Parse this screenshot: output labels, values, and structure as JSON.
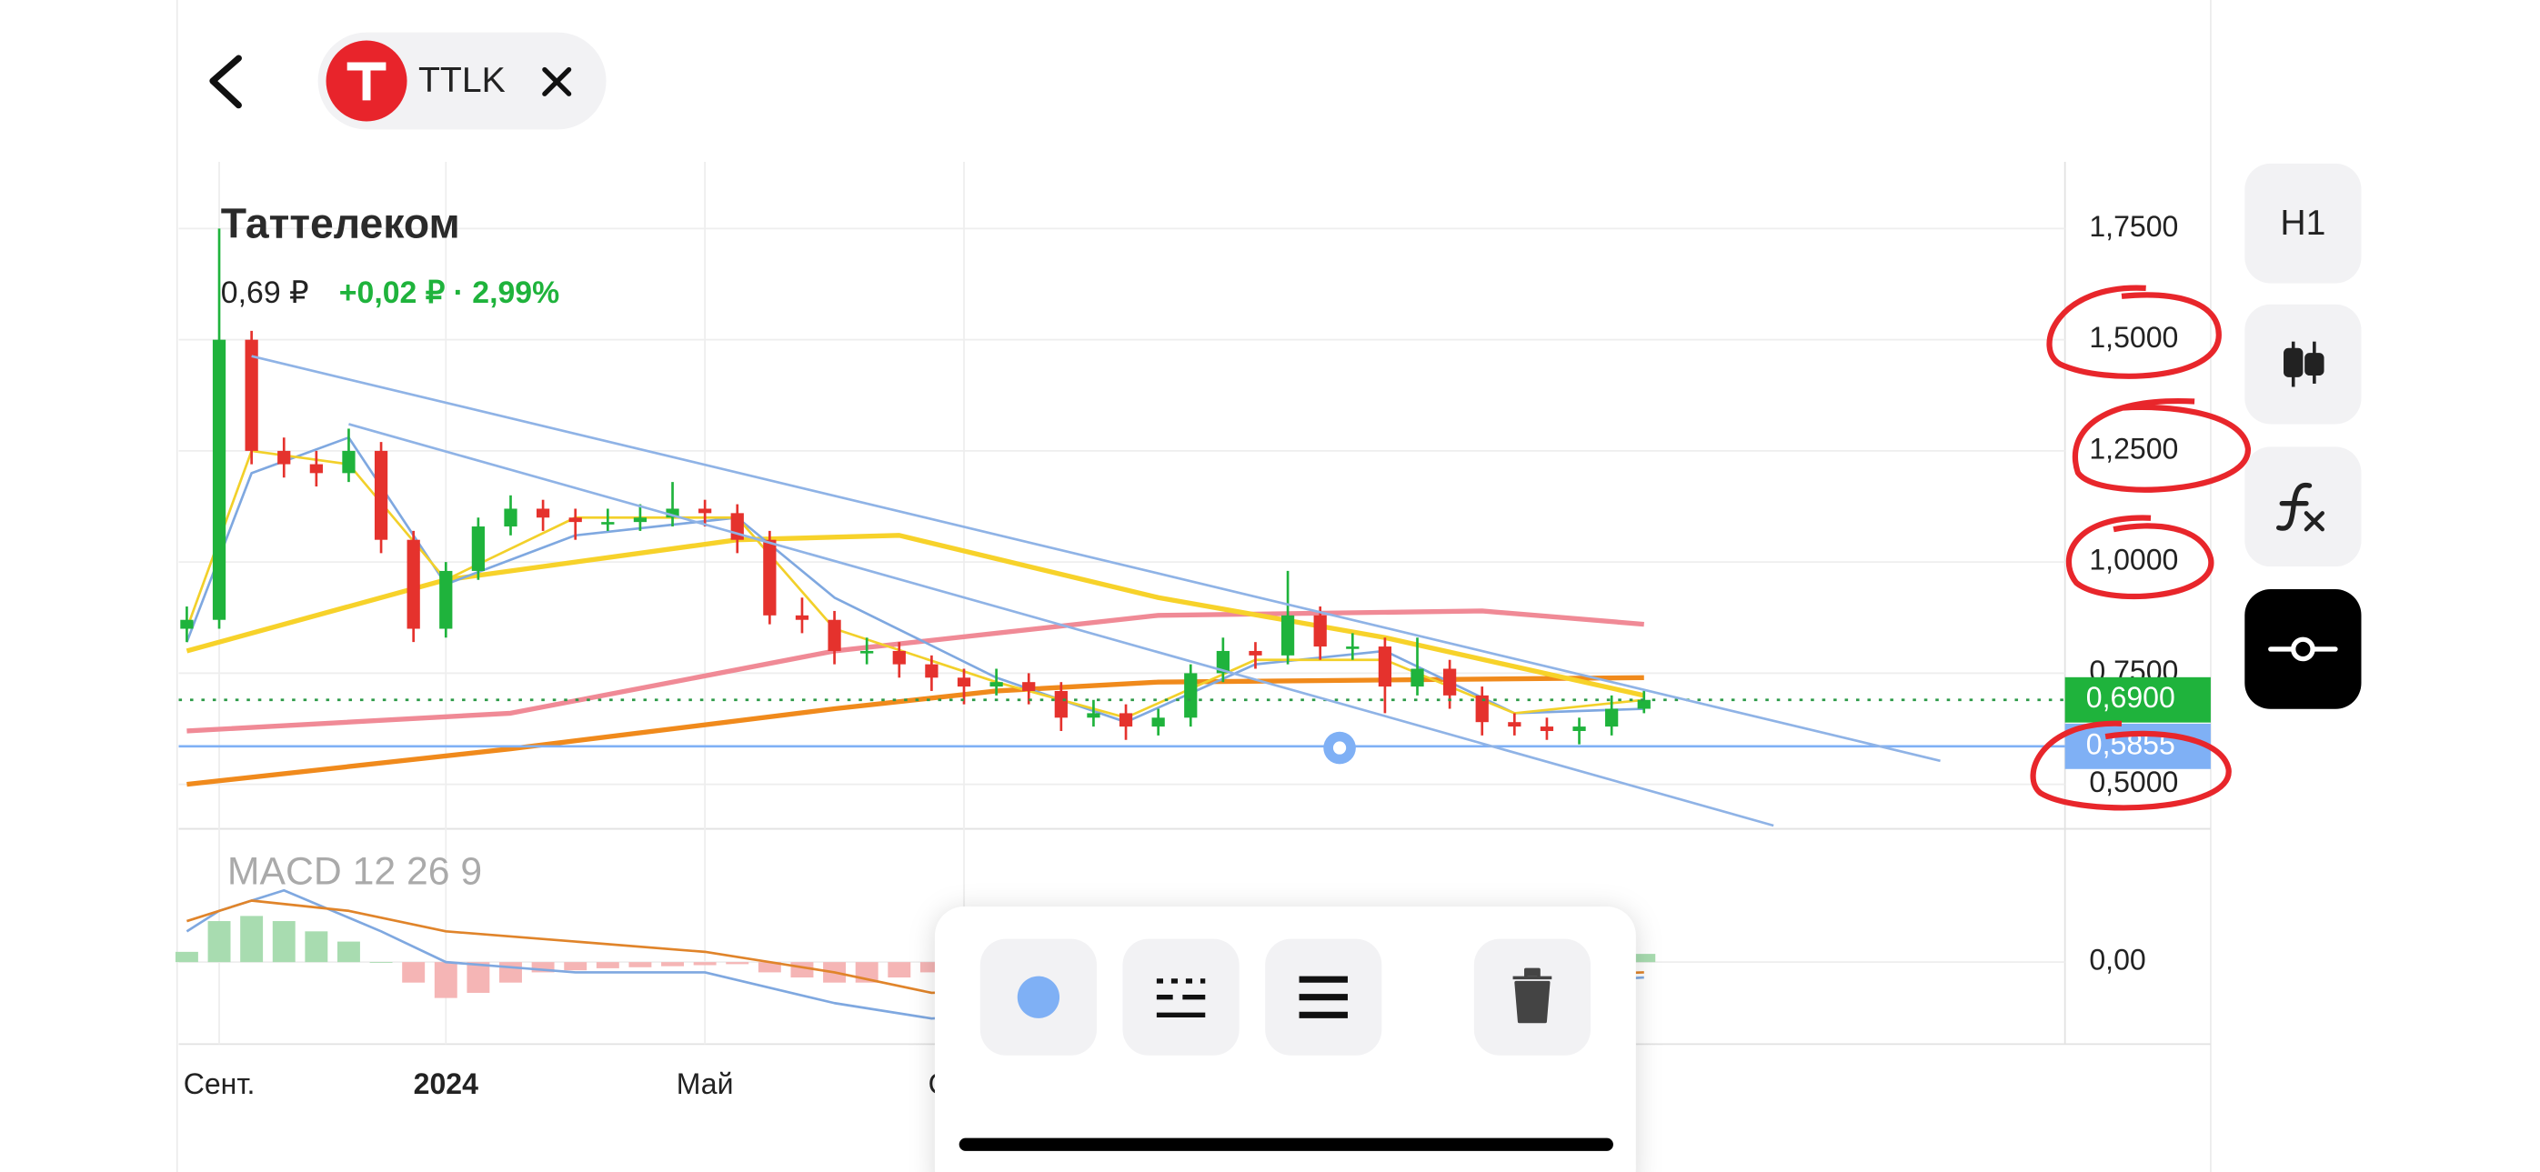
{
  "header": {
    "ticker": "TTLK"
  },
  "side_toolbar": {
    "timeframe": "H1"
  },
  "chart_data": {
    "type": "candlestick",
    "title": "Таттелеком",
    "price": "0,69 ₽",
    "change": "+0,02 ₽ · 2,99%",
    "categories": [
      null,
      "Сент.",
      null,
      null,
      null,
      null,
      null,
      null,
      "2024",
      null,
      null,
      null,
      null,
      null,
      null,
      null,
      "Май",
      null,
      null,
      null,
      null,
      null,
      null,
      null,
      "Сент.",
      null,
      null,
      null,
      null,
      null,
      null,
      null,
      null,
      null,
      null,
      null,
      null,
      null,
      null,
      null,
      null,
      null,
      null,
      null,
      null,
      null
    ],
    "open": [
      0.85,
      0.87,
      1.5,
      1.25,
      1.22,
      1.2,
      1.25,
      1.05,
      0.85,
      0.98,
      1.08,
      1.12,
      1.1,
      1.09,
      1.09,
      1.1,
      1.12,
      1.11,
      1.05,
      0.88,
      0.87,
      0.8,
      0.8,
      0.77,
      0.74,
      0.72,
      0.73,
      0.71,
      0.65,
      0.66,
      0.63,
      0.65,
      0.75,
      0.8,
      0.79,
      0.88,
      0.81,
      0.81,
      0.72,
      0.76,
      0.7,
      0.64,
      0.63,
      0.62,
      0.63,
      0.67
    ],
    "high": [
      0.9,
      1.75,
      1.52,
      1.28,
      1.25,
      1.3,
      1.27,
      1.07,
      1.0,
      1.1,
      1.15,
      1.14,
      1.12,
      1.12,
      1.13,
      1.18,
      1.14,
      1.13,
      1.07,
      0.92,
      0.89,
      0.83,
      0.82,
      0.79,
      0.76,
      0.76,
      0.75,
      0.73,
      0.69,
      0.68,
      0.67,
      0.77,
      0.83,
      0.82,
      0.98,
      0.9,
      0.84,
      0.83,
      0.83,
      0.78,
      0.72,
      0.66,
      0.65,
      0.65,
      0.7,
      0.71
    ],
    "low": [
      0.82,
      0.85,
      1.22,
      1.19,
      1.17,
      1.18,
      1.02,
      0.82,
      0.83,
      0.96,
      1.06,
      1.07,
      1.05,
      1.07,
      1.07,
      1.08,
      1.08,
      1.02,
      0.86,
      0.84,
      0.77,
      0.77,
      0.74,
      0.71,
      0.68,
      0.7,
      0.68,
      0.62,
      0.63,
      0.6,
      0.61,
      0.63,
      0.73,
      0.76,
      0.77,
      0.78,
      0.78,
      0.66,
      0.7,
      0.67,
      0.61,
      0.61,
      0.6,
      0.59,
      0.61,
      0.66
    ],
    "close": [
      0.87,
      1.5,
      1.25,
      1.22,
      1.2,
      1.25,
      1.05,
      0.85,
      0.98,
      1.08,
      1.12,
      1.1,
      1.09,
      1.09,
      1.1,
      1.12,
      1.11,
      1.05,
      0.88,
      0.87,
      0.8,
      0.8,
      0.77,
      0.74,
      0.72,
      0.73,
      0.71,
      0.65,
      0.66,
      0.63,
      0.65,
      0.75,
      0.8,
      0.79,
      0.88,
      0.81,
      0.81,
      0.72,
      0.76,
      0.7,
      0.64,
      0.63,
      0.62,
      0.63,
      0.67,
      0.69
    ],
    "up_color": "#1fb33c",
    "down_color": "#e5322d",
    "ylim": [
      0.4,
      1.9
    ],
    "yticks": [
      {
        "value": 0.5,
        "label": "0,5000"
      },
      {
        "value": 0.75,
        "label": "0,7500"
      },
      {
        "value": 1.0,
        "label": "1,0000"
      },
      {
        "value": 1.25,
        "label": "1,2500"
      },
      {
        "value": 1.5,
        "label": "1,5000"
      },
      {
        "value": 1.75,
        "label": "1,7500"
      }
    ],
    "grid": true,
    "overlays": [
      {
        "color": "#f08a1c",
        "width": 3,
        "x": [
          0,
          10,
          20,
          25,
          30,
          45
        ],
        "values": [
          0.5,
          0.58,
          0.67,
          0.71,
          0.73,
          0.74
        ]
      },
      {
        "color": "#f08a96",
        "width": 3,
        "x": [
          0,
          10,
          20,
          30,
          40,
          45
        ],
        "values": [
          0.62,
          0.66,
          0.8,
          0.88,
          0.89,
          0.86
        ]
      },
      {
        "color": "#f7d22a",
        "width": 3,
        "x": [
          0,
          8,
          17,
          22,
          30,
          37,
          45
        ],
        "values": [
          0.8,
          0.96,
          1.05,
          1.06,
          0.92,
          0.83,
          0.7
        ]
      },
      {
        "color": "#7fa8e0",
        "width": 1.5,
        "x": [
          0,
          2,
          5,
          8,
          12,
          17,
          20,
          25,
          29,
          33,
          37,
          41,
          45
        ],
        "values": [
          0.82,
          1.2,
          1.28,
          0.95,
          1.06,
          1.1,
          0.92,
          0.74,
          0.64,
          0.77,
          0.8,
          0.66,
          0.67
        ]
      },
      {
        "color": "#f2d02a",
        "width": 1.5,
        "x": [
          0,
          2,
          5,
          8,
          12,
          17,
          20,
          25,
          29,
          33,
          37,
          41,
          45
        ],
        "values": [
          0.85,
          1.25,
          1.22,
          0.96,
          1.1,
          1.1,
          0.85,
          0.73,
          0.65,
          0.78,
          0.78,
          0.66,
          0.69
        ]
      }
    ],
    "levels": [
      {
        "value": 0.5855,
        "label": "0,5855",
        "color": "#7fb0f5",
        "style": "solid"
      },
      {
        "value": 0.69,
        "label": "0,6900",
        "color": "#1fb33c",
        "style": "dotted"
      }
    ],
    "macd": {
      "title": "MACD 12 26 9",
      "ylim": [
        -0.08,
        0.13
      ],
      "yticks": [
        {
          "value": 0,
          "label": "0,00"
        }
      ],
      "histogram": [
        0.01,
        0.04,
        0.045,
        0.04,
        0.03,
        0.02,
        0.0,
        -0.02,
        -0.035,
        -0.03,
        -0.02,
        -0.01,
        -0.008,
        -0.006,
        -0.005,
        -0.004,
        -0.003,
        -0.002,
        -0.01,
        -0.015,
        -0.02,
        -0.02,
        -0.015,
        -0.01,
        -0.01,
        -0.008,
        -0.006,
        -0.006,
        -0.004,
        -0.003,
        -0.002,
        0.005,
        0.008,
        0.006,
        0.01,
        0.004,
        0.002,
        -0.004,
        -0.003,
        -0.005,
        -0.006,
        -0.004,
        -0.002,
        0.002,
        0.005,
        0.008
      ],
      "up_color": "#a8dcb0",
      "down_color": "#f5b5b5",
      "lines": [
        {
          "color": "#7fa8e0",
          "x": [
            0,
            1,
            3,
            6,
            8,
            12,
            16,
            20,
            23,
            45
          ],
          "values": [
            0.03,
            0.05,
            0.07,
            0.03,
            0.0,
            -0.01,
            -0.01,
            -0.04,
            -0.055,
            -0.015
          ]
        },
        {
          "color": "#e0842a",
          "x": [
            0,
            2,
            5,
            8,
            12,
            16,
            20,
            23,
            45
          ],
          "values": [
            0.04,
            0.06,
            0.05,
            0.03,
            0.02,
            0.01,
            -0.01,
            -0.03,
            -0.01
          ]
        }
      ]
    }
  }
}
